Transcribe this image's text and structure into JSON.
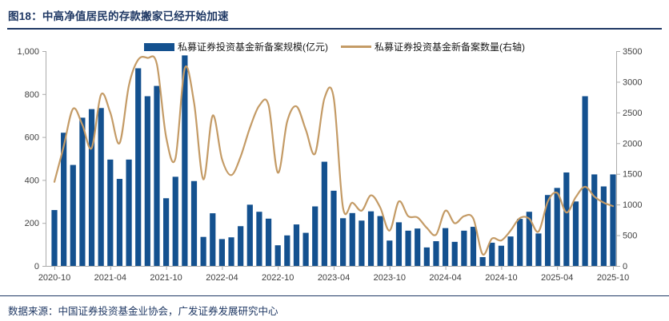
{
  "header": {
    "title": "图18：中高净值居民的存款搬家已经开始加速"
  },
  "footer": {
    "source": "数据来源：中国证券投资基金业协会，广发证券发展研究中心"
  },
  "colors": {
    "bar": "#14518F",
    "line": "#C49B66",
    "accent_navy": "#1F3864",
    "axis_line": "#ABABAB",
    "axis_text": "#404040",
    "legend_text": "#1a1a1a",
    "background": "#FFFFFF"
  },
  "chart_data": {
    "type": "bar",
    "subtype": "bar+line dual axis",
    "title": "",
    "xlabel": "",
    "ylabel": "",
    "grid": false,
    "legend_position": "top-center",
    "legend": [
      {
        "label": "私募证券投资基金新备案规模(亿元)",
        "marker": "bar",
        "color": "#14518F"
      },
      {
        "label": "私募证券投资基金新备案数量(右轴)",
        "marker": "line",
        "color": "#C49B66"
      }
    ],
    "categories": [
      "2020-10",
      "2020-11",
      "2020-12",
      "2021-01",
      "2021-02",
      "2021-03",
      "2021-04",
      "2021-05",
      "2021-06",
      "2021-07",
      "2021-08",
      "2021-09",
      "2021-10",
      "2021-11",
      "2021-12",
      "2022-01",
      "2022-02",
      "2022-03",
      "2022-04",
      "2022-05",
      "2022-06",
      "2022-07",
      "2022-08",
      "2022-09",
      "2022-10",
      "2022-11",
      "2022-12",
      "2023-01",
      "2023-02",
      "2023-03",
      "2023-04",
      "2023-05",
      "2023-06",
      "2023-07",
      "2023-08",
      "2023-09",
      "2023-10",
      "2023-11",
      "2023-12",
      "2024-01",
      "2024-02",
      "2024-03",
      "2024-04",
      "2024-05",
      "2024-06",
      "2024-07",
      "2024-08",
      "2024-09",
      "2024-10",
      "2024-11",
      "2024-12",
      "2025-01",
      "2025-02",
      "2025-03",
      "2025-04",
      "2025-05",
      "2025-06",
      "2025-07",
      "2025-08",
      "2025-09",
      "2025-10"
    ],
    "x_tick_labels": [
      "2020-10",
      "2021-04",
      "2021-10",
      "2022-04",
      "2022-10",
      "2023-04",
      "2023-10",
      "2024-04",
      "2024-10",
      "2025-04",
      "2025-10"
    ],
    "x_tick_every": 6,
    "series": [
      {
        "name": "私募证券投资基金新备案规模(亿元)",
        "type": "bar",
        "axis": "left",
        "values": [
          260,
          620,
          470,
          690,
          730,
          735,
          495,
          405,
          495,
          920,
          790,
          838,
          315,
          415,
          980,
          395,
          135,
          245,
          125,
          133,
          185,
          285,
          252,
          220,
          96,
          142,
          193,
          154,
          277,
          485,
          350,
          222,
          246,
          211,
          254,
          232,
          118,
          203,
          164,
          174,
          86,
          115,
          176,
          112,
          164,
          182,
          41,
          108,
          94,
          137,
          219,
          252,
          151,
          330,
          363,
          435,
          300,
          790,
          426,
          370,
          426
        ]
      },
      {
        "name": "私募证券投资基金新备案数量(右轴)",
        "type": "line",
        "axis": "right",
        "values": [
          1370,
          1950,
          2560,
          2300,
          1920,
          2790,
          2500,
          2000,
          2940,
          3360,
          3390,
          3290,
          2100,
          1750,
          3220,
          2660,
          1410,
          2450,
          1740,
          1480,
          1780,
          2250,
          2610,
          2620,
          1520,
          2350,
          2600,
          2220,
          1830,
          2730,
          2740,
          950,
          1030,
          900,
          1150,
          950,
          575,
          1050,
          810,
          790,
          620,
          510,
          900,
          695,
          810,
          770,
          190,
          445,
          415,
          575,
          780,
          770,
          560,
          1050,
          1190,
          870,
          1120,
          1290,
          1130,
          1030,
          975
        ]
      }
    ],
    "left_axis": {
      "min": 0,
      "max": 1000,
      "ticks": [
        "0",
        "200",
        "400",
        "600",
        "800",
        "1,000"
      ]
    },
    "right_axis": {
      "min": 0,
      "max": 3500,
      "ticks": [
        "0",
        "500",
        "1000",
        "1500",
        "2000",
        "2500",
        "3000",
        "3500"
      ]
    }
  }
}
